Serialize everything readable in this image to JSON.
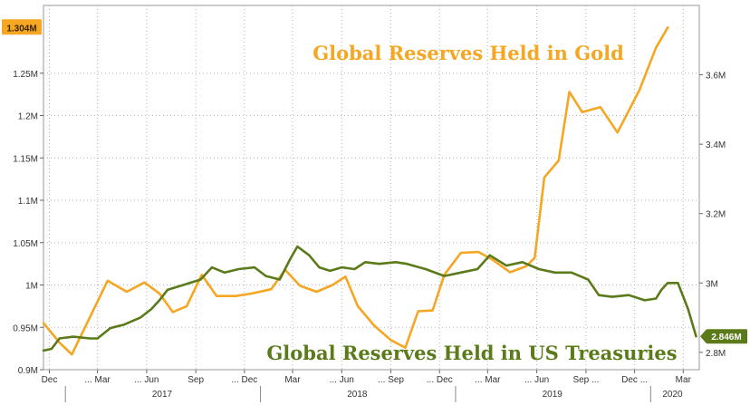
{
  "chart_data": {
    "type": "line",
    "x_axis": {
      "type": "date",
      "range": [
        "2016-11-20",
        "2020-03-31"
      ],
      "month_ticks": [
        "2016-12-01",
        "2017-03-01",
        "2017-06-01",
        "2017-09-01",
        "2017-12-01",
        "2018-03-01",
        "2018-06-01",
        "2018-09-01",
        "2018-12-01",
        "2019-03-01",
        "2019-06-01",
        "2019-09-01",
        "2019-12-01",
        "2020-03-01"
      ],
      "month_labels": [
        "Dec",
        "... Mar",
        "... Jun",
        "Sep",
        "... Dec",
        "Mar",
        "... Jun",
        "... Sep",
        "... Dec",
        "... Mar",
        "... Jun",
        "Sep ...",
        "Dec ...",
        "Mar"
      ],
      "year_labels": [
        {
          "label": "2017",
          "center": "2017-06-30"
        },
        {
          "label": "2018",
          "center": "2018-06-30"
        },
        {
          "label": "2019",
          "center": "2019-06-30"
        },
        {
          "label": "2020",
          "center": "2020-02-10"
        }
      ],
      "year_separators": [
        "2016-12-31",
        "2017-12-31",
        "2018-12-31",
        "2019-12-31"
      ]
    },
    "left_axis": {
      "min": 0.9,
      "max": 1.33,
      "ticks": [
        0.9,
        0.95,
        1.0,
        1.05,
        1.1,
        1.15,
        1.2,
        1.25
      ],
      "tick_labels": [
        "0.9M",
        "0.95M",
        "1M",
        "1.05M",
        "1.1M",
        "1.15M",
        "1.2M",
        "1.25M"
      ]
    },
    "right_axis": {
      "min": 2.75,
      "max": 3.8,
      "ticks": [
        2.8,
        3.0,
        3.2,
        3.4,
        3.6
      ],
      "tick_labels": [
        "2.8M",
        "3M",
        "3.2M",
        "3.4M",
        "3.6M"
      ]
    },
    "grid": true,
    "series": [
      {
        "name": "Global Reserves Held in Gold",
        "axis": "left",
        "color": "#f5a623",
        "last_value_label": "1.304M",
        "points": [
          [
            "2016-11-20",
            0.955
          ],
          [
            "2016-12-20",
            0.932
          ],
          [
            "2017-01-12",
            0.918
          ],
          [
            "2017-02-15",
            0.962
          ],
          [
            "2017-03-20",
            1.005
          ],
          [
            "2017-04-25",
            0.992
          ],
          [
            "2017-05-28",
            1.003
          ],
          [
            "2017-06-25",
            0.99
          ],
          [
            "2017-07-20",
            0.968
          ],
          [
            "2017-08-15",
            0.975
          ],
          [
            "2017-09-12",
            1.012
          ],
          [
            "2017-10-10",
            0.987
          ],
          [
            "2017-11-15",
            0.987
          ],
          [
            "2017-12-15",
            0.99
          ],
          [
            "2018-01-20",
            0.995
          ],
          [
            "2018-02-15",
            1.018
          ],
          [
            "2018-03-15",
            0.999
          ],
          [
            "2018-04-15",
            0.992
          ],
          [
            "2018-05-15",
            1.0
          ],
          [
            "2018-06-08",
            1.01
          ],
          [
            "2018-07-01",
            0.975
          ],
          [
            "2018-08-01",
            0.952
          ],
          [
            "2018-09-01",
            0.935
          ],
          [
            "2018-09-28",
            0.926
          ],
          [
            "2018-10-22",
            0.969
          ],
          [
            "2018-11-18",
            0.97
          ],
          [
            "2018-12-10",
            1.012
          ],
          [
            "2019-01-10",
            1.038
          ],
          [
            "2019-02-12",
            1.039
          ],
          [
            "2019-03-10",
            1.03
          ],
          [
            "2019-04-12",
            1.015
          ],
          [
            "2019-05-12",
            1.022
          ],
          [
            "2019-05-28",
            1.032
          ],
          [
            "2019-06-15",
            1.127
          ],
          [
            "2019-07-12",
            1.147
          ],
          [
            "2019-08-01",
            1.228
          ],
          [
            "2019-08-25",
            1.204
          ],
          [
            "2019-09-28",
            1.21
          ],
          [
            "2019-10-30",
            1.18
          ],
          [
            "2019-12-10",
            1.23
          ],
          [
            "2020-01-10",
            1.28
          ],
          [
            "2020-02-01",
            1.304
          ]
        ]
      },
      {
        "name": "Global Reserves Held in US Treasuries",
        "axis": "right",
        "color": "#5b7a1a",
        "last_value_label": "2.846M",
        "points": [
          [
            "2016-11-20",
            2.805
          ],
          [
            "2016-12-05",
            2.81
          ],
          [
            "2016-12-20",
            2.84
          ],
          [
            "2017-01-15",
            2.845
          ],
          [
            "2017-02-15",
            2.84
          ],
          [
            "2017-03-01",
            2.84
          ],
          [
            "2017-03-25",
            2.87
          ],
          [
            "2017-04-20",
            2.88
          ],
          [
            "2017-05-20",
            2.9
          ],
          [
            "2017-06-10",
            2.925
          ],
          [
            "2017-06-25",
            2.95
          ],
          [
            "2017-07-10",
            2.98
          ],
          [
            "2017-08-10",
            2.995
          ],
          [
            "2017-09-10",
            3.01
          ],
          [
            "2017-10-01",
            3.045
          ],
          [
            "2017-10-25",
            3.03
          ],
          [
            "2017-11-20",
            3.04
          ],
          [
            "2017-12-20",
            3.045
          ],
          [
            "2018-01-10",
            3.02
          ],
          [
            "2018-02-05",
            3.01
          ],
          [
            "2018-02-25",
            3.07
          ],
          [
            "2018-03-10",
            3.105
          ],
          [
            "2018-04-01",
            3.08
          ],
          [
            "2018-04-20",
            3.045
          ],
          [
            "2018-05-10",
            3.035
          ],
          [
            "2018-06-01",
            3.045
          ],
          [
            "2018-06-25",
            3.04
          ],
          [
            "2018-07-15",
            3.06
          ],
          [
            "2018-08-10",
            3.055
          ],
          [
            "2018-09-10",
            3.06
          ],
          [
            "2018-10-01",
            3.055
          ],
          [
            "2018-11-05",
            3.04
          ],
          [
            "2018-12-10",
            3.02
          ],
          [
            "2019-01-10",
            3.03
          ],
          [
            "2019-02-10",
            3.04
          ],
          [
            "2019-03-05",
            3.08
          ],
          [
            "2019-04-05",
            3.05
          ],
          [
            "2019-05-05",
            3.06
          ],
          [
            "2019-06-05",
            3.04
          ],
          [
            "2019-07-05",
            3.03
          ],
          [
            "2019-08-05",
            3.03
          ],
          [
            "2019-09-05",
            3.01
          ],
          [
            "2019-09-25",
            2.965
          ],
          [
            "2019-10-20",
            2.96
          ],
          [
            "2019-11-20",
            2.965
          ],
          [
            "2019-12-20",
            2.95
          ],
          [
            "2020-01-10",
            2.955
          ],
          [
            "2020-01-20",
            2.98
          ],
          [
            "2020-02-01",
            3.0
          ],
          [
            "2020-02-20",
            3.0
          ],
          [
            "2020-03-10",
            2.925
          ],
          [
            "2020-03-25",
            2.846
          ]
        ]
      }
    ]
  },
  "gold_title": "Global Reserves Held in Gold",
  "treasury_title": "Global Reserves Held in US Treasuries",
  "gold_badge": "1.304M",
  "treasury_badge": "2.846M"
}
